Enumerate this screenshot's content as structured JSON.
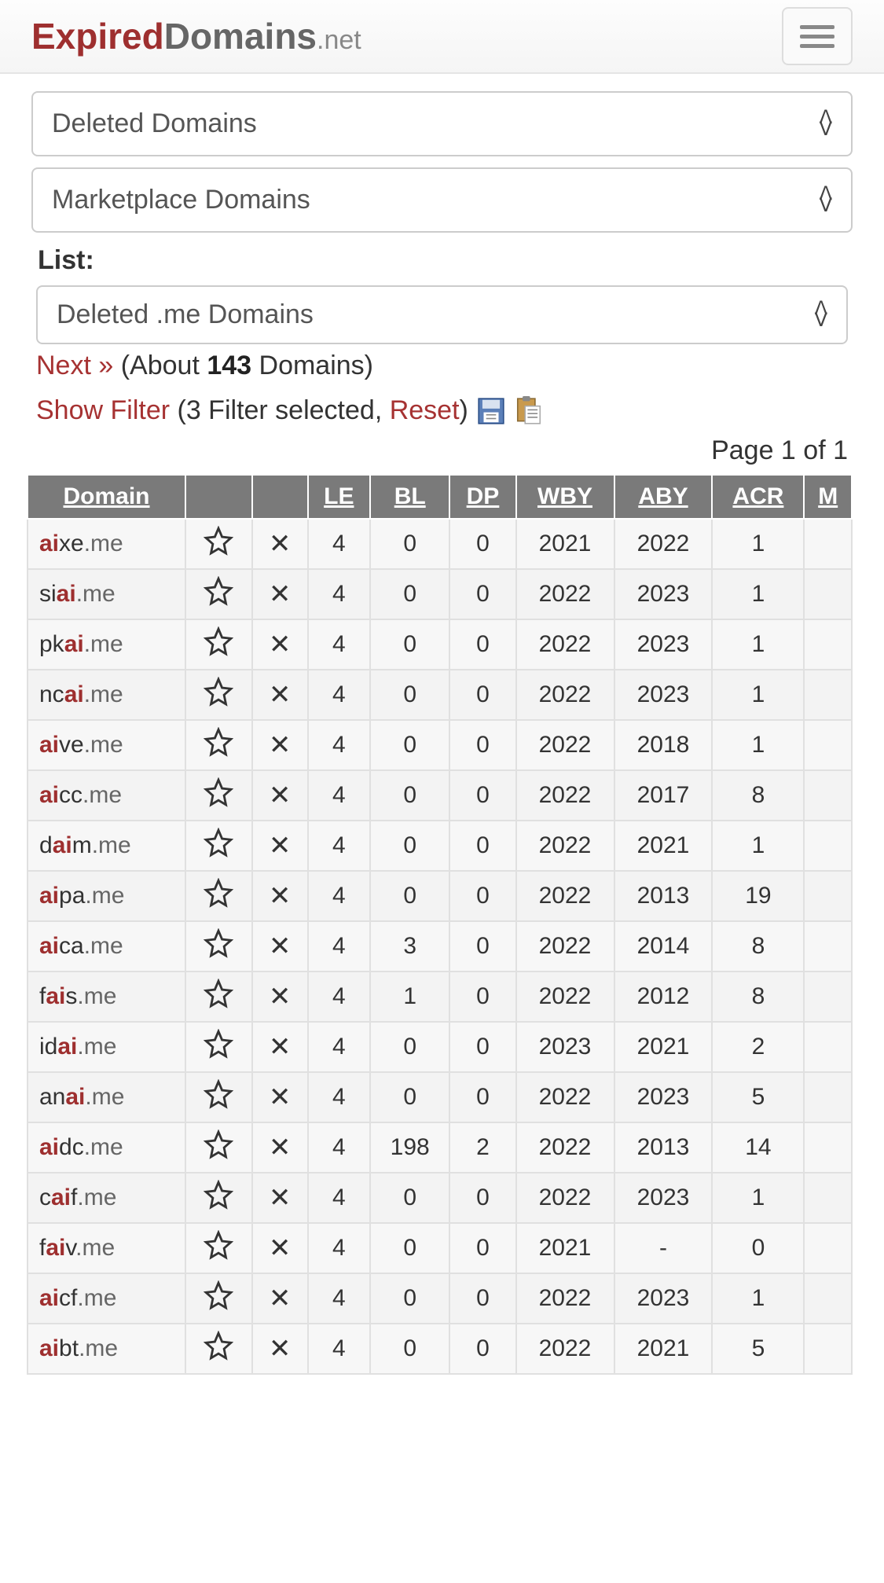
{
  "brand": {
    "part1": "Expired",
    "part2": "Domains",
    "part3": ".net"
  },
  "selects": {
    "deleted": "Deleted Domains",
    "marketplace": "Marketplace Domains",
    "list_label": "List:",
    "list_value": "Deleted .me Domains"
  },
  "next": {
    "label": "Next »",
    "about_pre": " (About ",
    "about_count": "143",
    "about_post": " Domains)"
  },
  "filter": {
    "show": "Show Filter",
    "selected_pre": " (3 Filter selected, ",
    "reset": "Reset",
    "post": ") "
  },
  "page_info": "Page 1 of 1",
  "columns": [
    "Domain",
    "",
    "",
    "LE",
    "BL",
    "DP",
    "WBY",
    "ABY",
    "ACR",
    "M"
  ],
  "rows": [
    {
      "pre": "",
      "bold": "ai",
      "post": "xe",
      "tld": ".me",
      "le": "4",
      "bl": "0",
      "dp": "0",
      "wby": "2021",
      "aby": "2022",
      "acr": "1"
    },
    {
      "pre": "si",
      "bold": "ai",
      "post": "",
      "tld": ".me",
      "le": "4",
      "bl": "0",
      "dp": "0",
      "wby": "2022",
      "aby": "2023",
      "acr": "1"
    },
    {
      "pre": "pk",
      "bold": "ai",
      "post": "",
      "tld": ".me",
      "le": "4",
      "bl": "0",
      "dp": "0",
      "wby": "2022",
      "aby": "2023",
      "acr": "1"
    },
    {
      "pre": "nc",
      "bold": "ai",
      "post": "",
      "tld": ".me",
      "le": "4",
      "bl": "0",
      "dp": "0",
      "wby": "2022",
      "aby": "2023",
      "acr": "1"
    },
    {
      "pre": "",
      "bold": "ai",
      "post": "ve",
      "tld": ".me",
      "le": "4",
      "bl": "0",
      "dp": "0",
      "wby": "2022",
      "aby": "2018",
      "acr": "1"
    },
    {
      "pre": "",
      "bold": "ai",
      "post": "cc",
      "tld": ".me",
      "le": "4",
      "bl": "0",
      "dp": "0",
      "wby": "2022",
      "aby": "2017",
      "acr": "8"
    },
    {
      "pre": "d",
      "bold": "ai",
      "post": "m",
      "tld": ".me",
      "le": "4",
      "bl": "0",
      "dp": "0",
      "wby": "2022",
      "aby": "2021",
      "acr": "1"
    },
    {
      "pre": "",
      "bold": "ai",
      "post": "pa",
      "tld": ".me",
      "le": "4",
      "bl": "0",
      "dp": "0",
      "wby": "2022",
      "aby": "2013",
      "acr": "19"
    },
    {
      "pre": "",
      "bold": "ai",
      "post": "ca",
      "tld": ".me",
      "le": "4",
      "bl": "3",
      "dp": "0",
      "wby": "2022",
      "aby": "2014",
      "acr": "8"
    },
    {
      "pre": "f",
      "bold": "ai",
      "post": "s",
      "tld": ".me",
      "le": "4",
      "bl": "1",
      "dp": "0",
      "wby": "2022",
      "aby": "2012",
      "acr": "8"
    },
    {
      "pre": "id",
      "bold": "ai",
      "post": "",
      "tld": ".me",
      "le": "4",
      "bl": "0",
      "dp": "0",
      "wby": "2023",
      "aby": "2021",
      "acr": "2"
    },
    {
      "pre": "an",
      "bold": "ai",
      "post": "",
      "tld": ".me",
      "le": "4",
      "bl": "0",
      "dp": "0",
      "wby": "2022",
      "aby": "2023",
      "acr": "5"
    },
    {
      "pre": "",
      "bold": "ai",
      "post": "dc",
      "tld": ".me",
      "le": "4",
      "bl": "198",
      "dp": "2",
      "wby": "2022",
      "aby": "2013",
      "acr": "14"
    },
    {
      "pre": "c",
      "bold": "ai",
      "post": "f",
      "tld": ".me",
      "le": "4",
      "bl": "0",
      "dp": "0",
      "wby": "2022",
      "aby": "2023",
      "acr": "1"
    },
    {
      "pre": "f",
      "bold": "ai",
      "post": "v",
      "tld": ".me",
      "le": "4",
      "bl": "0",
      "dp": "0",
      "wby": "2021",
      "aby": "-",
      "acr": "0"
    },
    {
      "pre": "",
      "bold": "ai",
      "post": "cf",
      "tld": ".me",
      "le": "4",
      "bl": "0",
      "dp": "0",
      "wby": "2022",
      "aby": "2023",
      "acr": "1"
    },
    {
      "pre": "",
      "bold": "ai",
      "post": "bt",
      "tld": ".me",
      "le": "4",
      "bl": "0",
      "dp": "0",
      "wby": "2022",
      "aby": "2021",
      "acr": "5"
    }
  ]
}
